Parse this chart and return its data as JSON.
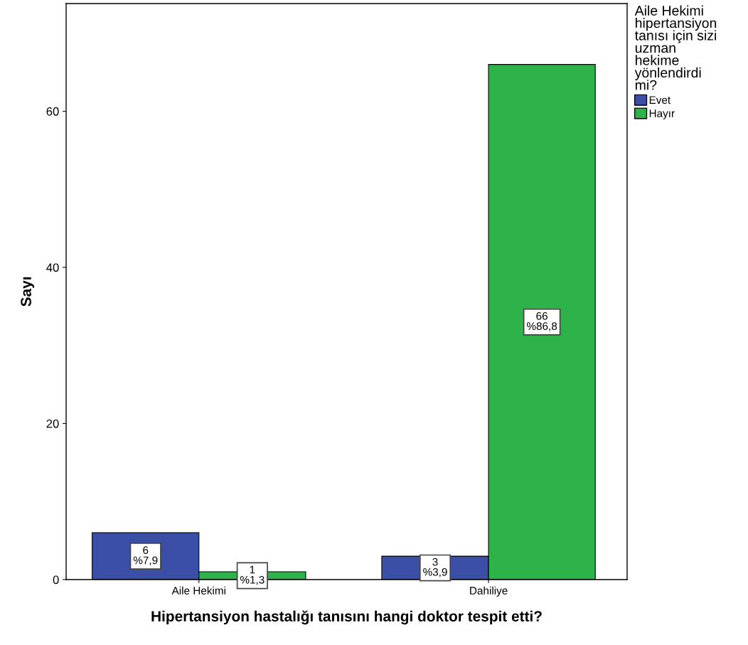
{
  "chart_data": {
    "type": "bar",
    "xlabel": "Hipertansiyon hastalığı tanısını hangi doktor tespit etti?",
    "ylabel": "Sayı",
    "legend_title": "Aile Hekimi\nhipertansiyon\ntanısı için sizi\nuzman\nhekime\nyönlendirdi\nmi?",
    "categories": [
      "Aile Hekimi",
      "Dahiliye"
    ],
    "series": [
      {
        "name": "Evet",
        "color": "#3b4fa6",
        "values": [
          6,
          3
        ],
        "value_labels": [
          "6\n%7,9",
          "3\n%3,9"
        ]
      },
      {
        "name": "Hayır",
        "color": "#2eb34b",
        "values": [
          1,
          66
        ],
        "value_labels": [
          "1\n%1,3",
          "66\n%86,8"
        ]
      }
    ],
    "ylim": [
      0,
      73.8
    ],
    "yticks": [
      0,
      20,
      40,
      60
    ],
    "grid": false,
    "legend": "right"
  }
}
